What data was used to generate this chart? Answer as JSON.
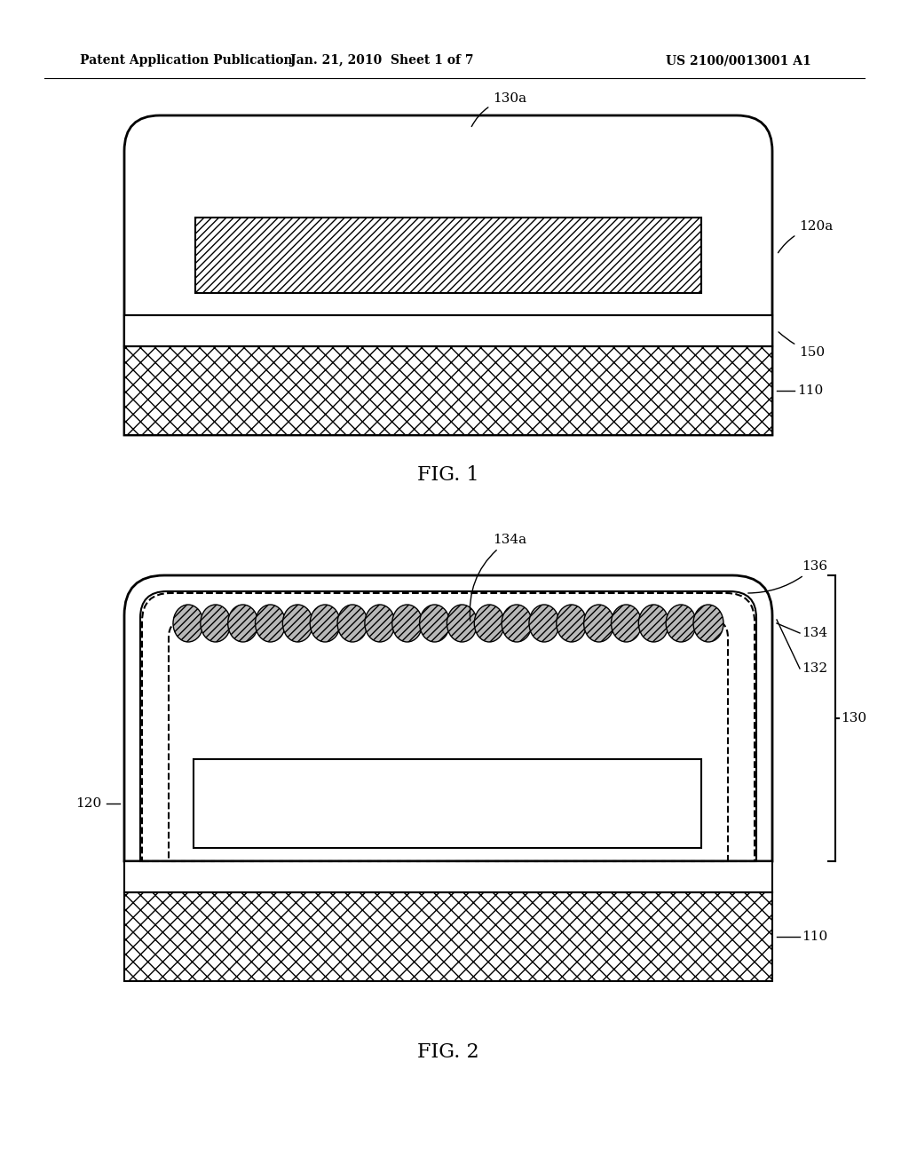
{
  "bg_color": "#ffffff",
  "header_left": "Patent Application Publication",
  "header_center": "Jan. 21, 2010  Sheet 1 of 7",
  "header_right": "US 2100/0013001 A1",
  "fig1_caption": "FIG. 1",
  "fig2_caption": "FIG. 2"
}
